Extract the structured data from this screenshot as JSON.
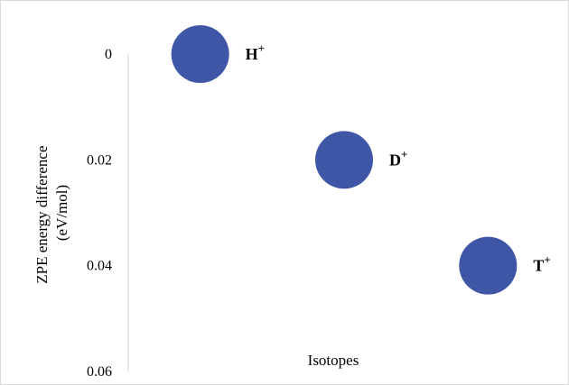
{
  "chart_data": {
    "type": "scatter",
    "title": "",
    "xlabel": "Isotopes",
    "ylabel": [
      "ZPE energy  difference",
      "(eV/mol)"
    ],
    "y_axis": {
      "min": 0,
      "max": 0.06,
      "step": 0.02,
      "inverted": true
    },
    "y_ticks": [
      "0",
      "0.02",
      "0.04",
      "0.06"
    ],
    "x_range": [
      0.5,
      3.5
    ],
    "grid": false,
    "legend": "none",
    "marker_color": "#3f56a6",
    "points": [
      {
        "x": 1,
        "y": 0,
        "label_base": "H",
        "label_sup": "+"
      },
      {
        "x": 2,
        "y": 0.02,
        "label_base": "D",
        "label_sup": "+"
      },
      {
        "x": 3,
        "y": 0.04,
        "label_base": "T",
        "label_sup": "+"
      }
    ]
  }
}
